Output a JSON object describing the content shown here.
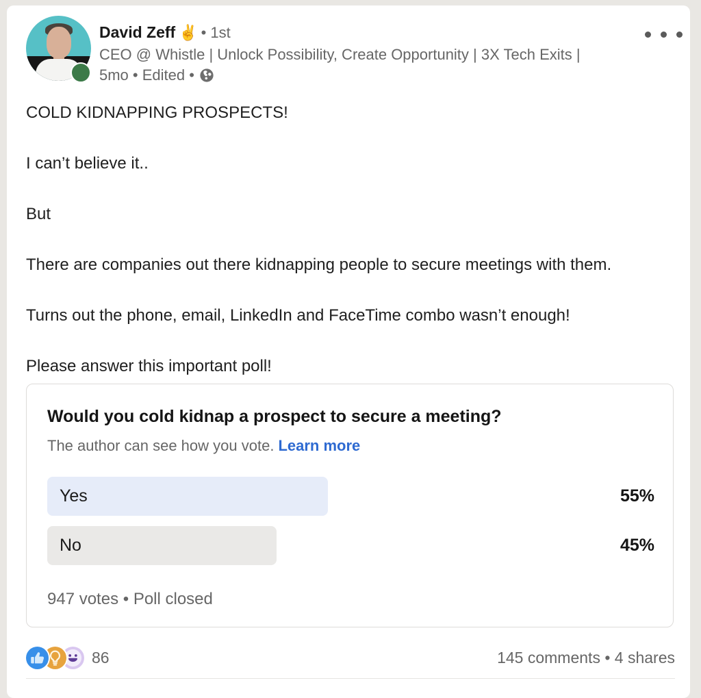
{
  "page": {
    "background": "#e9e7e3",
    "card_background": "#ffffff"
  },
  "header": {
    "name": "David Zeff",
    "name_emoji": "✌️",
    "degree": "• 1st",
    "headline": "CEO @ Whistle | Unlock Possibility, Create Opportunity | 3X Tech Exits |",
    "meta": "5mo • Edited •",
    "icons": {
      "visibility": "globe-icon",
      "menu": "three-dot-menu-icon",
      "presence": "online-status-dot"
    }
  },
  "post": {
    "paragraphs": [
      "COLD KIDNAPPING PROSPECTS!",
      "I can’t believe it..",
      "But",
      "There are companies out there kidnapping people to secure meetings with them.",
      "Turns out the phone, email, LinkedIn and FaceTime combo wasn’t enough!",
      "Please answer this important poll!"
    ]
  },
  "poll": {
    "question": "Would you cold kidnap a prospect to secure a meeting?",
    "disclaimer": "The author can see how you vote.",
    "learn_more": "Learn more",
    "options": [
      {
        "label": "Yes",
        "percent_label": "55%",
        "value": 55,
        "bar_color": "#e6ecf9"
      },
      {
        "label": "No",
        "percent_label": "45%",
        "value": 45,
        "bar_color": "#eae9e7"
      }
    ],
    "summary": "947 votes • Poll closed"
  },
  "engagement": {
    "reaction_icons": [
      "like-icon",
      "insightful-icon",
      "funny-icon"
    ],
    "reaction_count": "86",
    "right_summary": "145 comments • 4 shares"
  },
  "colors": {
    "link": "#2e6ad1",
    "like_blue": "#378fe9",
    "insightful_gold": "#e7a33e",
    "funny_purple": "#d9c7f0"
  }
}
